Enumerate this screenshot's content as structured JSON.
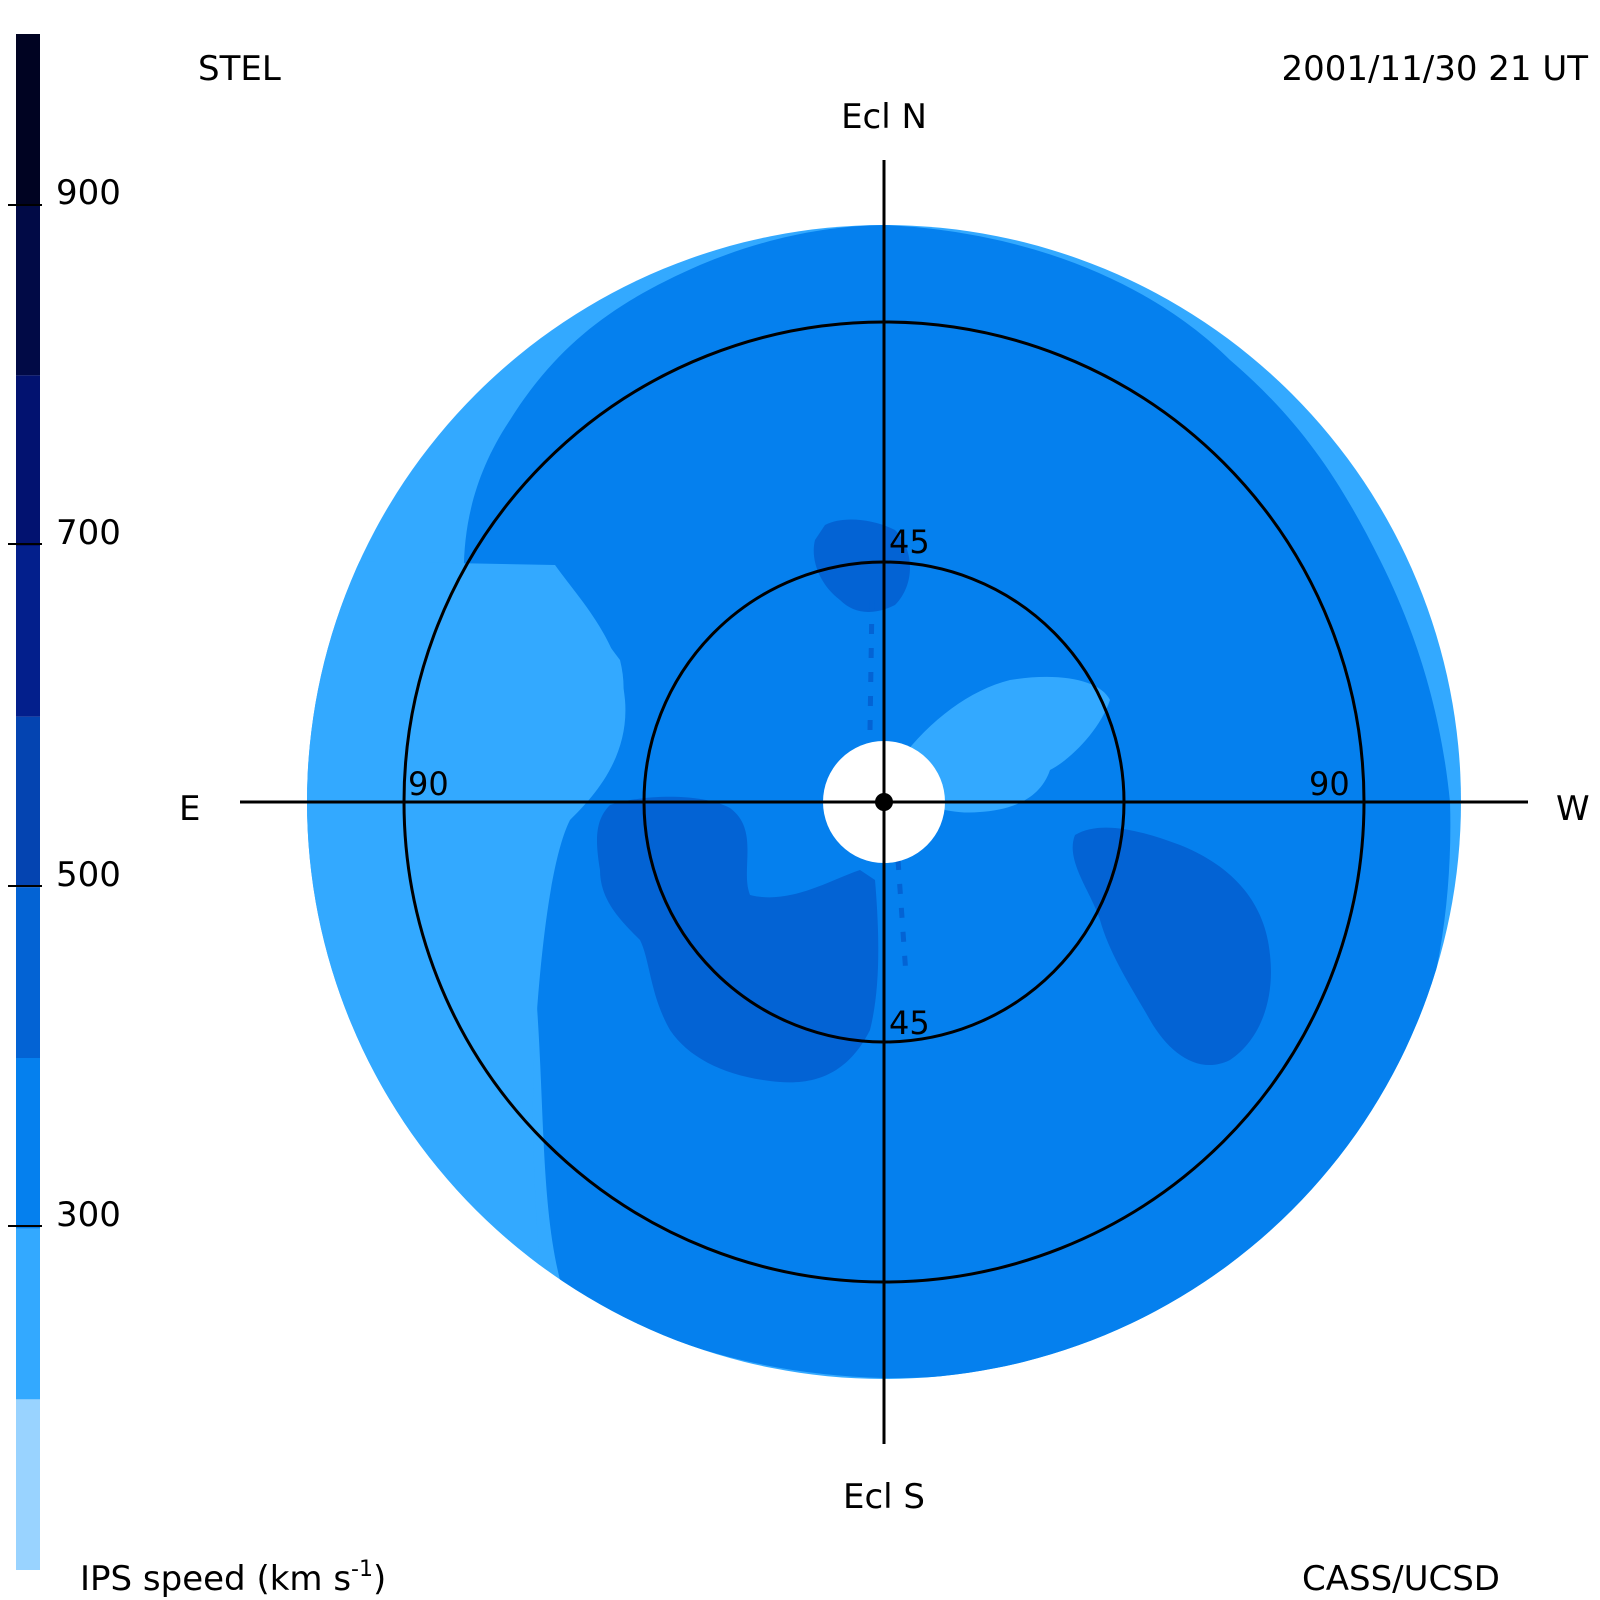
{
  "header": {
    "observatory": "STEL",
    "timestamp": "2001/11/30 21 UT",
    "credit": "CASS/UCSD"
  },
  "directions": {
    "north": "Ecl N",
    "south": "Ecl S",
    "east": "E",
    "west": "W"
  },
  "rings": [
    {
      "elongation": 45,
      "labels": [
        "45",
        "45"
      ]
    },
    {
      "elongation": 90,
      "labels": [
        "90",
        "90"
      ]
    }
  ],
  "colorbar": {
    "label_prefix": "IPS speed (km s",
    "label_exponent": "-1",
    "label_suffix": ")",
    "min": 100,
    "max": 1000,
    "ticks": [
      "300",
      "500",
      "700",
      "900"
    ],
    "bands": [
      {
        "from": 100,
        "to": 200,
        "color": "#99d3ff"
      },
      {
        "from": 200,
        "to": 300,
        "color": "#33a9ff"
      },
      {
        "from": 300,
        "to": 400,
        "color": "#0580ee"
      },
      {
        "from": 400,
        "to": 500,
        "color": "#0363d4"
      },
      {
        "from": 500,
        "to": 600,
        "color": "#0444b1"
      },
      {
        "from": 600,
        "to": 700,
        "color": "#031f8c"
      },
      {
        "from": 700,
        "to": 800,
        "color": "#021270"
      },
      {
        "from": 800,
        "to": 900,
        "color": "#010a46"
      },
      {
        "from": 900,
        "to": 1000,
        "color": "#000322"
      }
    ]
  },
  "chart_data": {
    "type": "heatmap",
    "projection": "fisheye sky map centred on the Sun, radius = elongation",
    "max_elongation": 120,
    "quantity_ticks": [
      300,
      500,
      700,
      900
    ],
    "regions": [
      {
        "speed_band": "300-400",
        "color": "#0580ee",
        "description": "background inside 90 ring"
      },
      {
        "speed_band": "200-300",
        "color": "#33a9ff",
        "description": "outer rim and east lobe"
      },
      {
        "speed_band": "400-500",
        "color": "#0363d4",
        "description": "south-east and south-west lobes"
      }
    ]
  }
}
